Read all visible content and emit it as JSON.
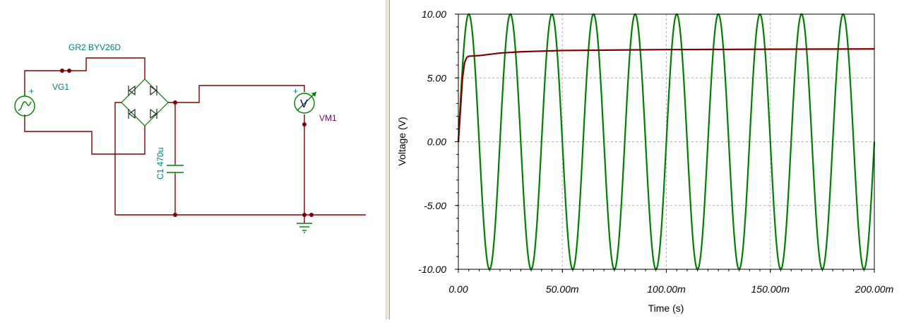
{
  "schematic": {
    "components": {
      "source": {
        "label": "VG1",
        "polarity": "+"
      },
      "bridge": {
        "label": "GR2 BYV26D"
      },
      "capacitor": {
        "label": "C1 470u"
      },
      "voltmeter": {
        "label": "VM1",
        "symbol": "V",
        "polarity": "+"
      }
    },
    "colors": {
      "wire": "#800000",
      "component": "#008000",
      "label": "#008080",
      "meter_label": "#800080"
    }
  },
  "graph": {
    "chart_data": {
      "type": "line",
      "xlabel": "Time (s)",
      "ylabel": "Voltage (V)",
      "xlim": [
        0,
        0.2
      ],
      "ylim": [
        -10,
        10
      ],
      "grid": true,
      "x_ticks": [
        "0.00",
        "50.00m",
        "100.00m",
        "150.00m",
        "200.00m"
      ],
      "y_ticks": [
        "10.00",
        "5.00",
        "0.00",
        "-5.00",
        "-10.00"
      ],
      "series": [
        {
          "color": "#008000",
          "kind": "sine",
          "amplitude": 10,
          "frequency_hz": 50,
          "phase_deg": 0
        },
        {
          "color": "#800000",
          "x": [
            0,
            0.001,
            0.002,
            0.003,
            0.004,
            0.005,
            0.01,
            0.02,
            0.03,
            0.05,
            0.1,
            0.15,
            0.2
          ],
          "y": [
            0,
            2.5,
            5.0,
            6.2,
            6.6,
            6.7,
            6.75,
            6.95,
            7.05,
            7.15,
            7.22,
            7.25,
            7.27
          ]
        }
      ]
    }
  }
}
